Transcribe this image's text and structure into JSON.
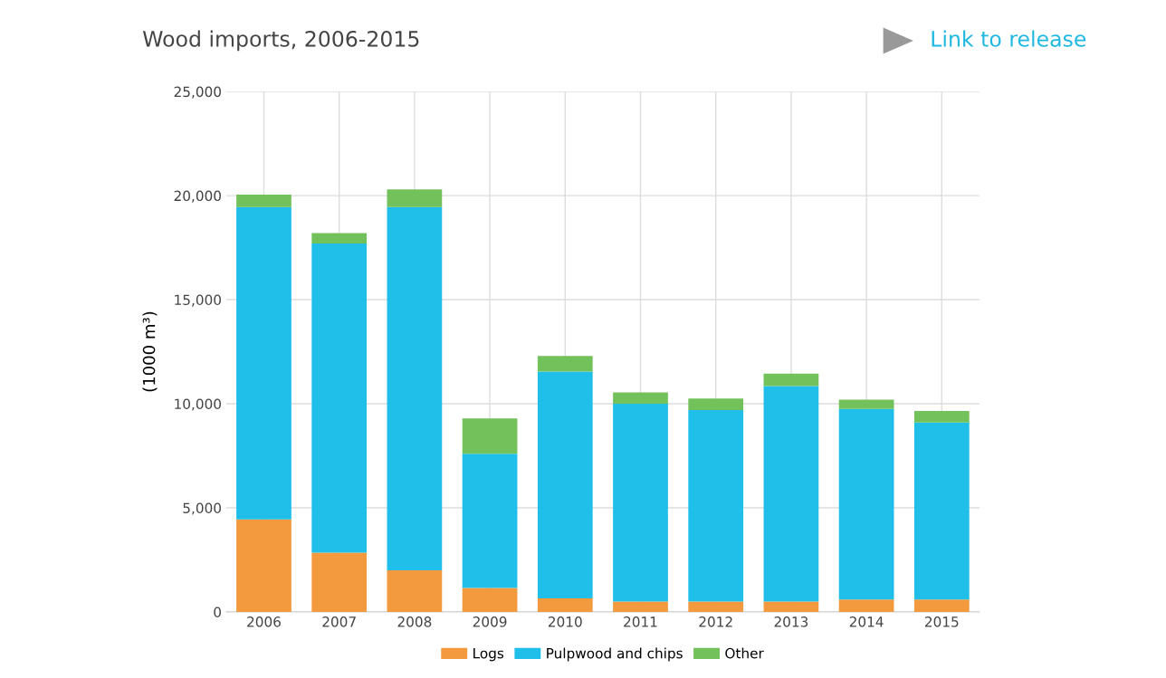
{
  "chart_data": {
    "type": "bar",
    "title": "Wood imports, 2006-2015",
    "ylabel": "(1000 m³)",
    "annotations": [
      "Link to release"
    ],
    "categories": [
      "2006",
      "2007",
      "2008",
      "2009",
      "2010",
      "2011",
      "2012",
      "2013",
      "2014",
      "2015"
    ],
    "stacked": true,
    "series": [
      {
        "name": "Logs",
        "color": "#f39a3e",
        "values": [
          4450,
          2850,
          2000,
          1150,
          650,
          500,
          500,
          500,
          600,
          600
        ]
      },
      {
        "name": "Pulpwood and chips",
        "color": "#1fbfea",
        "values": [
          15000,
          14850,
          17450,
          6450,
          10900,
          9500,
          9200,
          10350,
          9150,
          8500
        ]
      },
      {
        "name": "Other",
        "color": "#73c15b",
        "values": [
          600,
          500,
          850,
          1700,
          750,
          550,
          550,
          600,
          450,
          550
        ]
      }
    ],
    "ylim": [
      0,
      25000
    ],
    "yticks": [
      {
        "value": 0,
        "label": "0"
      },
      {
        "value": 5000,
        "label": "5,000"
      },
      {
        "value": 10000,
        "label": "10,000"
      },
      {
        "value": 15000,
        "label": "15,000"
      },
      {
        "value": 20000,
        "label": "20,000"
      },
      {
        "value": 25000,
        "label": "25,000"
      }
    ],
    "grid": true,
    "legend": "bottom"
  }
}
